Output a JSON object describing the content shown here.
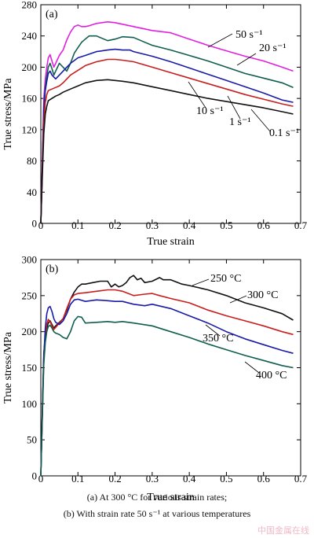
{
  "chart_data": [
    {
      "type": "line",
      "panel_label": "(a)",
      "xlabel": "True strain",
      "ylabel": "True stress/MPa",
      "xlim": [
        0,
        0.7
      ],
      "ylim": [
        0,
        280
      ],
      "xticks": [
        "0",
        "0.1",
        "0.2",
        "0.3",
        "0.4",
        "0.5",
        "0.6",
        "0.7"
      ],
      "yticks": [
        "0",
        "40",
        "80",
        "120",
        "160",
        "200",
        "240",
        "280"
      ],
      "grid": false,
      "series": [
        {
          "name": "50 s⁻¹",
          "color": "#e020e0",
          "x": [
            0,
            0.004,
            0.008,
            0.012,
            0.016,
            0.02,
            0.025,
            0.03,
            0.035,
            0.04,
            0.05,
            0.06,
            0.07,
            0.08,
            0.09,
            0.1,
            0.11,
            0.12,
            0.13,
            0.15,
            0.18,
            0.2,
            0.22,
            0.25,
            0.3,
            0.35,
            0.4,
            0.45,
            0.5,
            0.55,
            0.6,
            0.65,
            0.68
          ],
          "y": [
            0,
            80,
            160,
            185,
            200,
            212,
            216,
            208,
            200,
            205,
            215,
            222,
            235,
            245,
            252,
            254,
            252,
            252,
            253,
            256,
            258,
            257,
            255,
            252,
            247,
            244,
            236,
            228,
            221,
            214,
            208,
            200,
            195
          ]
        },
        {
          "name": "20 s⁻¹",
          "color": "#0f5e4e",
          "x": [
            0,
            0.004,
            0.008,
            0.012,
            0.016,
            0.02,
            0.025,
            0.03,
            0.035,
            0.04,
            0.05,
            0.06,
            0.07,
            0.08,
            0.09,
            0.1,
            0.11,
            0.12,
            0.13,
            0.15,
            0.18,
            0.2,
            0.22,
            0.25,
            0.28,
            0.3,
            0.35,
            0.4,
            0.45,
            0.5,
            0.55,
            0.6,
            0.65,
            0.68
          ],
          "y": [
            0,
            70,
            150,
            175,
            188,
            200,
            205,
            198,
            190,
            195,
            205,
            200,
            195,
            205,
            218,
            225,
            232,
            236,
            240,
            240,
            234,
            236,
            239,
            238,
            232,
            228,
            222,
            215,
            208,
            200,
            192,
            186,
            180,
            174
          ]
        },
        {
          "name": "10 s⁻¹",
          "color": "#1a1aa8",
          "x": [
            0,
            0.004,
            0.008,
            0.012,
            0.016,
            0.02,
            0.025,
            0.03,
            0.04,
            0.05,
            0.06,
            0.07,
            0.08,
            0.1,
            0.12,
            0.15,
            0.18,
            0.2,
            0.22,
            0.24,
            0.25,
            0.3,
            0.35,
            0.4,
            0.45,
            0.5,
            0.55,
            0.6,
            0.65,
            0.68
          ],
          "y": [
            0,
            70,
            145,
            170,
            182,
            192,
            195,
            190,
            185,
            190,
            195,
            200,
            205,
            212,
            215,
            220,
            222,
            223,
            222,
            222,
            220,
            214,
            207,
            199,
            191,
            183,
            175,
            167,
            158,
            155
          ]
        },
        {
          "name": "1 s⁻¹",
          "color": "#c81e1e",
          "x": [
            0,
            0.004,
            0.008,
            0.012,
            0.016,
            0.02,
            0.03,
            0.04,
            0.05,
            0.06,
            0.08,
            0.1,
            0.12,
            0.15,
            0.18,
            0.2,
            0.22,
            0.25,
            0.3,
            0.35,
            0.4,
            0.45,
            0.5,
            0.55,
            0.6,
            0.65,
            0.68
          ],
          "y": [
            0,
            65,
            130,
            155,
            165,
            170,
            172,
            174,
            176,
            180,
            190,
            196,
            202,
            207,
            210,
            210,
            209,
            207,
            200,
            193,
            186,
            179,
            172,
            165,
            159,
            153,
            150
          ]
        },
        {
          "name": "0.1 s⁻¹",
          "color": "#111111",
          "x": [
            0,
            0.004,
            0.008,
            0.012,
            0.016,
            0.02,
            0.03,
            0.04,
            0.05,
            0.06,
            0.08,
            0.1,
            0.12,
            0.15,
            0.18,
            0.2,
            0.22,
            0.25,
            0.3,
            0.35,
            0.4,
            0.45,
            0.5,
            0.55,
            0.6,
            0.65,
            0.68
          ],
          "y": [
            0,
            60,
            115,
            140,
            150,
            157,
            160,
            163,
            165,
            168,
            172,
            176,
            180,
            183,
            184,
            183,
            182,
            180,
            175,
            170,
            165,
            160,
            156,
            152,
            148,
            143,
            140
          ]
        }
      ],
      "annotations": [
        "50 s⁻¹",
        "20 s⁻¹",
        "10 s⁻¹",
        "1 s⁻¹",
        "0.1 s⁻¹"
      ]
    },
    {
      "type": "line",
      "panel_label": "(b)",
      "xlabel": "True strain",
      "ylabel": "True stress/MPa",
      "xlim": [
        0,
        0.7
      ],
      "ylim": [
        0,
        300
      ],
      "xticks": [
        "0",
        "0.1",
        "0.2",
        "0.3",
        "0.4",
        "0.5",
        "0.6",
        "0.7"
      ],
      "yticks": [
        "0",
        "50",
        "100",
        "150",
        "200",
        "250",
        "300"
      ],
      "grid": false,
      "series": [
        {
          "name": "250 °C",
          "color": "#111111",
          "x": [
            0,
            0.004,
            0.008,
            0.012,
            0.016,
            0.02,
            0.025,
            0.03,
            0.035,
            0.04,
            0.05,
            0.06,
            0.07,
            0.08,
            0.09,
            0.1,
            0.11,
            0.12,
            0.14,
            0.16,
            0.18,
            0.19,
            0.2,
            0.21,
            0.22,
            0.23,
            0.24,
            0.25,
            0.26,
            0.27,
            0.28,
            0.3,
            0.32,
            0.33,
            0.35,
            0.38,
            0.4,
            0.45,
            0.5,
            0.55,
            0.6,
            0.65,
            0.68
          ],
          "y": [
            0,
            90,
            170,
            195,
            205,
            212,
            215,
            210,
            205,
            208,
            213,
            218,
            230,
            245,
            255,
            262,
            266,
            266,
            268,
            270,
            270,
            262,
            266,
            262,
            264,
            268,
            275,
            278,
            272,
            274,
            268,
            270,
            275,
            272,
            272,
            266,
            264,
            258,
            250,
            240,
            233,
            225,
            216
          ]
        },
        {
          "name": "300 °C",
          "color": "#c81e1e",
          "x": [
            0,
            0.004,
            0.008,
            0.012,
            0.016,
            0.02,
            0.025,
            0.03,
            0.035,
            0.04,
            0.05,
            0.06,
            0.07,
            0.08,
            0.09,
            0.1,
            0.12,
            0.15,
            0.18,
            0.2,
            0.22,
            0.25,
            0.28,
            0.3,
            0.32,
            0.35,
            0.4,
            0.45,
            0.5,
            0.55,
            0.6,
            0.65,
            0.68
          ],
          "y": [
            0,
            85,
            165,
            195,
            210,
            217,
            214,
            208,
            203,
            206,
            212,
            218,
            232,
            245,
            251,
            253,
            254,
            256,
            258,
            258,
            256,
            250,
            252,
            253,
            250,
            246,
            240,
            230,
            222,
            215,
            208,
            200,
            196
          ]
        },
        {
          "name": "350 °C",
          "color": "#1a1aa8",
          "x": [
            0,
            0.004,
            0.008,
            0.012,
            0.016,
            0.02,
            0.025,
            0.03,
            0.035,
            0.04,
            0.05,
            0.06,
            0.07,
            0.08,
            0.09,
            0.1,
            0.12,
            0.15,
            0.18,
            0.2,
            0.22,
            0.25,
            0.28,
            0.3,
            0.35,
            0.4,
            0.45,
            0.5,
            0.55,
            0.6,
            0.65,
            0.68
          ],
          "y": [
            0,
            85,
            165,
            205,
            225,
            233,
            235,
            228,
            218,
            213,
            210,
            215,
            225,
            238,
            244,
            245,
            242,
            244,
            243,
            242,
            242,
            238,
            236,
            238,
            232,
            222,
            212,
            200,
            190,
            182,
            174,
            170
          ]
        },
        {
          "name": "400 °C",
          "color": "#0f5e4e",
          "x": [
            0,
            0.004,
            0.008,
            0.012,
            0.016,
            0.02,
            0.025,
            0.03,
            0.035,
            0.04,
            0.05,
            0.06,
            0.07,
            0.08,
            0.09,
            0.1,
            0.11,
            0.12,
            0.15,
            0.18,
            0.2,
            0.22,
            0.25,
            0.3,
            0.35,
            0.4,
            0.45,
            0.5,
            0.55,
            0.6,
            0.65,
            0.68
          ],
          "y": [
            0,
            80,
            155,
            185,
            200,
            207,
            209,
            205,
            200,
            198,
            196,
            192,
            190,
            200,
            215,
            221,
            220,
            212,
            213,
            214,
            213,
            214,
            212,
            208,
            200,
            192,
            183,
            175,
            167,
            160,
            153,
            150
          ]
        }
      ],
      "annotations": [
        "250 °C",
        "300 °C",
        "350 °C",
        "400 °C"
      ]
    }
  ],
  "captions": {
    "line_a": "(a)  At 300 °C  for  various  strain  rates;",
    "line_b": "(b) With strain rate 50 s⁻¹ at various temperatures"
  },
  "watermark": "中国金属在线"
}
